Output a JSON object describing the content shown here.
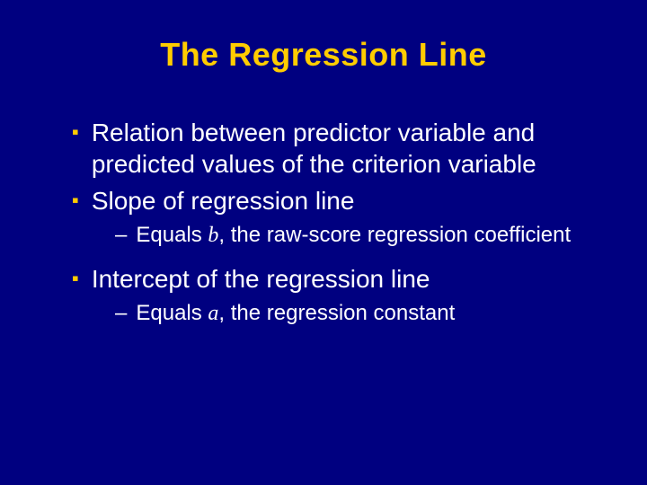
{
  "slide": {
    "background_color": "#000080",
    "title": {
      "text": "The Regression Line",
      "color": "#ffcc00",
      "fontsize": 36,
      "fontweight": 900
    },
    "bullets": [
      {
        "level": 1,
        "text": "Relation between predictor variable and predicted values of the criterion variable",
        "marker_color": "#ffcc00",
        "text_color": "#ffffff",
        "fontsize": 28
      },
      {
        "level": 1,
        "text": "Slope of regression line",
        "marker_color": "#ffcc00",
        "text_color": "#ffffff",
        "fontsize": 28
      },
      {
        "level": 2,
        "prefix": "Equals ",
        "var": "b",
        "suffix": ", the raw-score regression coefficient",
        "marker_color": "#ffffff",
        "text_color": "#ffffff",
        "fontsize": 24
      },
      {
        "level": 1,
        "text": "Intercept of the regression line",
        "marker_color": "#ffcc00",
        "text_color": "#ffffff",
        "fontsize": 28
      },
      {
        "level": 2,
        "prefix": "Equals ",
        "var": "a",
        "suffix": ", the regression constant",
        "marker_color": "#ffffff",
        "text_color": "#ffffff",
        "fontsize": 24
      }
    ],
    "marker_l1": "▪",
    "marker_l2": "–"
  }
}
